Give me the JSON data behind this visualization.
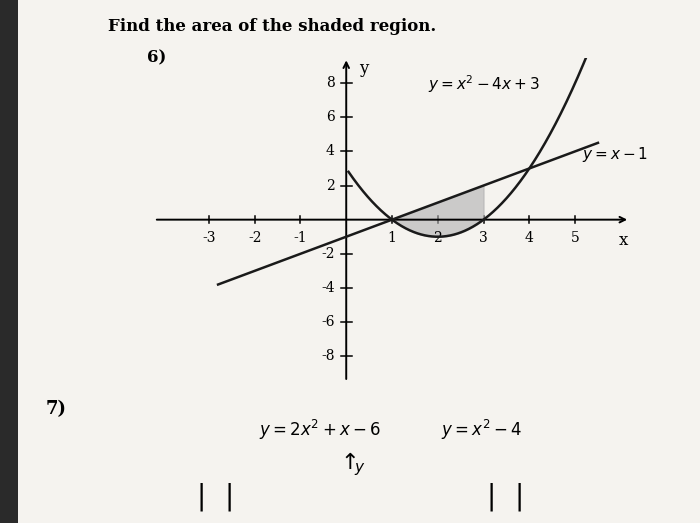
{
  "title_main": "Find the area of the shaded region.",
  "problem_number": "6)",
  "xlim": [
    -4.2,
    6.2
  ],
  "ylim": [
    -9.5,
    9.5
  ],
  "xticks": [
    -3,
    -2,
    -1,
    1,
    2,
    3,
    4,
    5
  ],
  "yticks": [
    -8,
    -6,
    -4,
    -2,
    2,
    4,
    6,
    8
  ],
  "xlabel": "x",
  "ylabel": "y",
  "intersection_x1": 1,
  "intersection_x2": 3,
  "shade_color": "#b0b0b0",
  "shade_alpha": 0.6,
  "background_color": "#f0eeea",
  "paper_color": "#f5f3ef",
  "curve_color": "#1a1a1a",
  "line_color": "#1a1a1a",
  "tick_label_size": 10,
  "label_fontsize": 11,
  "eq_parabola": "y = x² − 4x + 3",
  "eq_line": "y = x − 1",
  "problem7_text": "7)",
  "eq7_left": "y = 2x² + x − 6",
  "eq7_right": "y = x² − 4"
}
